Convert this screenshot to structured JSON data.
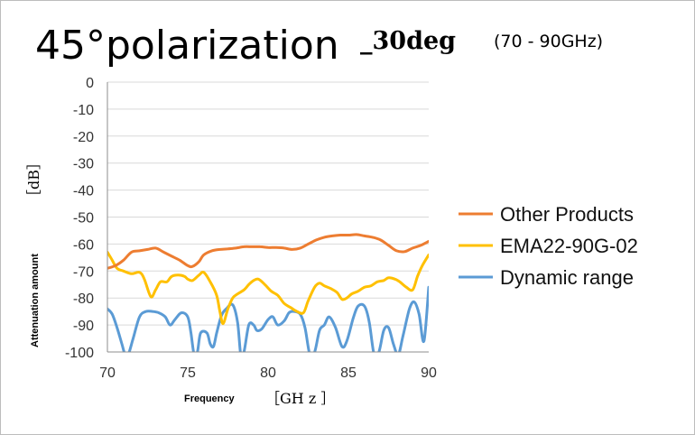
{
  "chart_data": {
    "type": "line",
    "title_main": "45°polarization",
    "title_sub": "_30deg",
    "title_range": "(70 - 90GHz)",
    "xlabel": "Frequency",
    "xunit": "［GH z ］",
    "ylabel": "Attenuation amount",
    "yunit": "［dB］",
    "xlim": [
      70,
      90
    ],
    "ylim": [
      -100,
      0
    ],
    "x_ticks": [
      "70",
      "75",
      "80",
      "85",
      "90"
    ],
    "y_ticks": [
      "0",
      "-10",
      "-20",
      "-30",
      "-40",
      "-50",
      "-60",
      "-70",
      "-80",
      "-90",
      "-100"
    ],
    "grid": "horizontal",
    "legend_position": "right",
    "series": [
      {
        "name": "Other Products",
        "color": "#ED7D31",
        "x": [
          70,
          70.5,
          71,
          71.5,
          72,
          72.5,
          73,
          73.5,
          74,
          74.5,
          75,
          75.3,
          75.7,
          76,
          76.5,
          77,
          77.5,
          78,
          78.5,
          79,
          79.5,
          80,
          80.5,
          81,
          81.5,
          82,
          82.5,
          83,
          83.5,
          84,
          84.5,
          85,
          85.5,
          86,
          86.5,
          87,
          87.5,
          88,
          88.5,
          89,
          89.5,
          90
        ],
        "y": [
          -69,
          -68,
          -66,
          -63,
          -62.5,
          -62,
          -61.5,
          -63,
          -64.5,
          -66,
          -68,
          -68.3,
          -66.5,
          -64,
          -62.5,
          -62,
          -61.8,
          -61.5,
          -61,
          -61,
          -61,
          -61.3,
          -61.3,
          -61.5,
          -62,
          -61.5,
          -60,
          -58.5,
          -57.5,
          -57,
          -56.7,
          -56.7,
          -56.5,
          -57,
          -57.5,
          -58.5,
          -60.5,
          -62.5,
          -62.8,
          -61.5,
          -60.5,
          -59
        ]
      },
      {
        "name": "EMA22-90G-02",
        "color": "#FFC000",
        "x": [
          70,
          70.3,
          70.6,
          71,
          71.5,
          72,
          72.3,
          72.7,
          73,
          73.3,
          73.7,
          74,
          74.4,
          74.8,
          75,
          75.3,
          75.7,
          76,
          76.4,
          76.8,
          77,
          77.2,
          77.5,
          77.8,
          78.1,
          78.5,
          78.8,
          79.1,
          79.4,
          79.8,
          80.2,
          80.6,
          81,
          81.4,
          81.8,
          82.2,
          82.5,
          82.9,
          83.2,
          83.5,
          83.9,
          84.3,
          84.6,
          84.9,
          85.2,
          85.6,
          86,
          86.4,
          86.8,
          87.2,
          87.5,
          87.9,
          88.2,
          88.6,
          89,
          89.3,
          89.6,
          90
        ],
        "y": [
          -63,
          -66,
          -69,
          -70,
          -71,
          -70.5,
          -73,
          -79.5,
          -77,
          -74,
          -74,
          -72,
          -71.5,
          -72,
          -73,
          -73.5,
          -71.5,
          -70.5,
          -74,
          -79,
          -85,
          -89.5,
          -84,
          -80,
          -78.5,
          -77,
          -75,
          -73.5,
          -73,
          -75,
          -77.5,
          -79,
          -82,
          -83.5,
          -85,
          -85.5,
          -81,
          -76,
          -74.5,
          -75.5,
          -76.5,
          -78,
          -80.5,
          -80,
          -78.5,
          -77.5,
          -76,
          -75.5,
          -74,
          -73.5,
          -72.5,
          -73,
          -74,
          -76,
          -77,
          -72,
          -68,
          -64
        ]
      },
      {
        "name": "Dynamic range",
        "color": "#5B9BD5",
        "x": [
          70,
          70.3,
          70.6,
          70.9,
          71.1,
          71.3,
          71.6,
          72,
          72.4,
          72.8,
          73.2,
          73.6,
          73.9,
          74.2,
          74.6,
          75,
          75.2,
          75.4,
          75.6,
          75.8,
          76.2,
          76.4,
          76.6,
          76.8,
          77.1,
          77.4,
          77.8,
          78.1,
          78.3,
          78.5,
          78.8,
          79.1,
          79.3,
          79.6,
          80,
          80.3,
          80.6,
          81,
          81.3,
          81.6,
          82,
          82.3,
          82.6,
          82.9,
          83.2,
          83.5,
          83.8,
          84.2,
          84.6,
          84.9,
          85.3,
          85.6,
          86,
          86.3,
          86.6,
          86.9,
          87.2,
          87.5,
          87.8,
          88.1,
          88.4,
          88.8,
          89.1,
          89.4,
          89.7,
          90
        ],
        "y": [
          -84,
          -86,
          -91,
          -97,
          -101,
          -101,
          -95,
          -87,
          -85,
          -85,
          -85.5,
          -87,
          -90,
          -88,
          -85.5,
          -87,
          -93,
          -101,
          -100,
          -93,
          -93,
          -97,
          -98,
          -93,
          -86.5,
          -84,
          -82.5,
          -89,
          -101,
          -100,
          -90,
          -90,
          -92,
          -91.5,
          -88,
          -87,
          -90,
          -88.5,
          -85.5,
          -85,
          -86,
          -91,
          -101,
          -100,
          -92,
          -90,
          -87,
          -91,
          -98,
          -96,
          -87.5,
          -83,
          -83,
          -89,
          -101,
          -100,
          -92,
          -91,
          -97,
          -101,
          -94,
          -84,
          -81.5,
          -86,
          -96,
          -76
        ]
      }
    ]
  }
}
